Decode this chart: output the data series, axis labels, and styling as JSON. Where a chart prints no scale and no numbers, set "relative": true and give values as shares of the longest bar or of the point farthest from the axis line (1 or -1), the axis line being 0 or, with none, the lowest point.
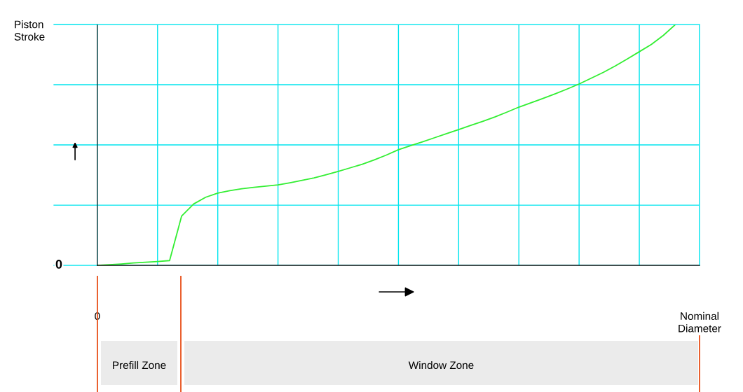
{
  "chart_data": {
    "type": "line",
    "relative": true,
    "ylabel": "Piston Stroke",
    "categories": [
      "0",
      null,
      null,
      null,
      null,
      null,
      null,
      null,
      null,
      null,
      null,
      null,
      null,
      null,
      null,
      null,
      null,
      null,
      null,
      null,
      null,
      null,
      null,
      null,
      null,
      null,
      null,
      null,
      null,
      null,
      null,
      null,
      null,
      null,
      null,
      null,
      null,
      null,
      null,
      null,
      null,
      null,
      null,
      null,
      null,
      null,
      null,
      null,
      null,
      null,
      "Nominal Diameter"
    ],
    "series": [
      {
        "color": "#33ee33",
        "values": [
          0,
          0.003,
          0.006,
          0.01,
          0.013,
          0.016,
          0.02,
          0.205,
          0.255,
          0.283,
          0.3,
          0.31,
          0.318,
          0.324,
          0.329,
          0.334,
          0.343,
          0.353,
          0.363,
          0.376,
          0.39,
          0.405,
          0.42,
          0.438,
          0.458,
          0.48,
          0.497,
          0.513,
          0.53,
          0.547,
          0.564,
          0.581,
          0.598,
          0.616,
          0.636,
          0.657,
          0.675,
          0.693,
          0.712,
          0.732,
          0.753,
          0.777,
          0.801,
          0.828,
          0.857,
          0.887,
          0.917,
          0.955,
          1.0,
          null,
          null
        ]
      }
    ],
    "grid": true,
    "annotations": [
      "0",
      "Prefill Zone",
      "Window Zone"
    ]
  }
}
